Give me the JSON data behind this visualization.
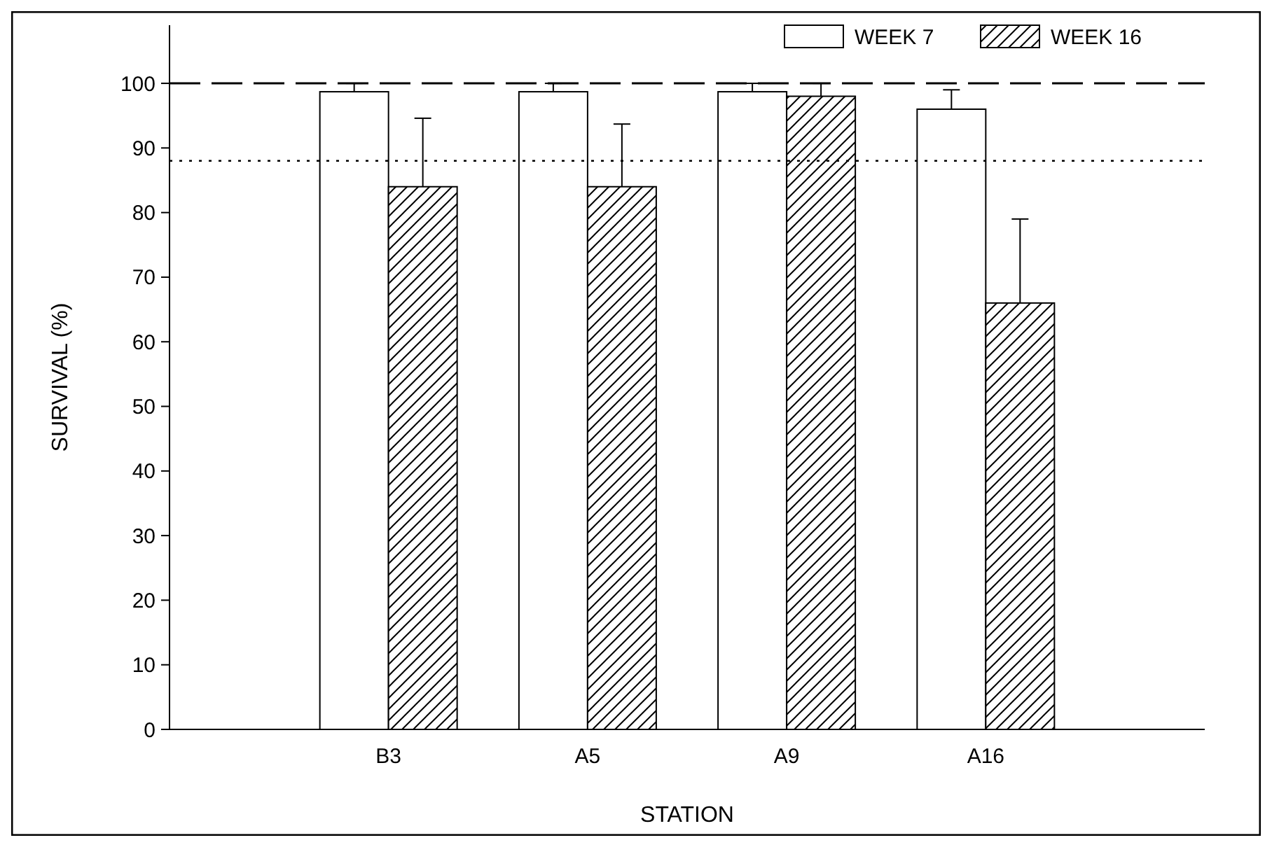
{
  "chart_data": {
    "type": "bar",
    "xlabel": "STATION",
    "ylabel": "SURVIVAL (%)",
    "categories": [
      "B3",
      "A5",
      "A9",
      "A16"
    ],
    "series": [
      {
        "name": "WEEK 7",
        "color": "#ffffff",
        "values": [
          98.7,
          98.7,
          98.7,
          96
        ],
        "errors": [
          [
            98.7,
            100
          ],
          [
            98.7,
            100
          ],
          [
            98.7,
            100
          ],
          [
            96,
            99
          ]
        ]
      },
      {
        "name": "WEEK 16",
        "color": "#000000",
        "values": [
          84,
          84,
          98,
          66
        ],
        "errors": [
          [
            84,
            94.6
          ],
          [
            84,
            93.7
          ],
          [
            98,
            100
          ],
          [
            66,
            79
          ]
        ]
      }
    ],
    "ylim": [
      0,
      109
    ],
    "yticks": [
      0,
      10,
      20,
      30,
      40,
      50,
      60,
      70,
      80,
      90,
      100
    ],
    "ref_lines": [
      {
        "axis": "y",
        "value": 100,
        "line_style": "dashed"
      },
      {
        "axis": "y",
        "value": 88,
        "line_style": "dotted"
      }
    ],
    "legend": "top right",
    "grid": false
  }
}
